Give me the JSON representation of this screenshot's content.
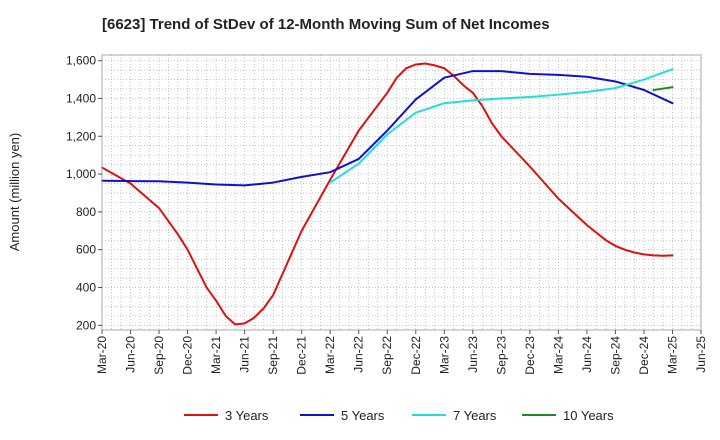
{
  "chart_data": {
    "type": "line",
    "title": "[6623]  Trend of StDev of 12-Month Moving Sum of Net Incomes",
    "xlabel": "",
    "ylabel": "Amount (million yen)",
    "ylim": [
      175,
      1630
    ],
    "y_ticks": [
      200,
      400,
      600,
      800,
      1000,
      1200,
      1400,
      1600
    ],
    "y_tick_labels": [
      "200",
      "400",
      "600",
      "800",
      "1,000",
      "1,200",
      "1,400",
      "1,600"
    ],
    "x_ticks": [
      "Mar-20",
      "Jun-20",
      "Sep-20",
      "Dec-20",
      "Mar-21",
      "Jun-21",
      "Sep-21",
      "Dec-21",
      "Mar-22",
      "Jun-22",
      "Sep-22",
      "Dec-22",
      "Mar-23",
      "Jun-23",
      "Sep-23",
      "Dec-23",
      "Mar-24",
      "Jun-24",
      "Sep-24",
      "Dec-24",
      "Mar-25",
      "Jun-25"
    ],
    "grid": true,
    "legend_position": "bottom",
    "series": [
      {
        "name": "3 Years",
        "color": "#dd1111",
        "x": [
          "2020-03",
          "2020-06",
          "2020-09",
          "2020-11",
          "2020-12",
          "2021-01",
          "2021-02",
          "2021-03",
          "2021-04",
          "2021-05",
          "2021-06",
          "2021-07",
          "2021-08",
          "2021-09",
          "2021-12",
          "2022-03",
          "2022-06",
          "2022-09",
          "2022-10",
          "2022-11",
          "2022-12",
          "2023-01",
          "2023-02",
          "2023-03",
          "2023-04",
          "2023-05",
          "2023-06",
          "2023-07",
          "2023-08",
          "2023-09",
          "2023-12",
          "2024-03",
          "2024-06",
          "2024-07",
          "2024-08",
          "2024-09",
          "2024-10",
          "2024-11",
          "2024-12",
          "2025-01",
          "2025-02",
          "2025-03"
        ],
        "values": [
          1035,
          950,
          820,
          680,
          600,
          500,
          400,
          330,
          250,
          205,
          210,
          240,
          290,
          360,
          700,
          970,
          1230,
          1430,
          1510,
          1560,
          1580,
          1585,
          1575,
          1560,
          1520,
          1470,
          1430,
          1360,
          1270,
          1200,
          1040,
          870,
          730,
          690,
          650,
          620,
          600,
          585,
          575,
          570,
          568,
          570
        ]
      },
      {
        "name": "5 Years",
        "color": "#1111cc",
        "x": [
          "2020-03",
          "2020-06",
          "2020-09",
          "2020-12",
          "2021-03",
          "2021-06",
          "2021-09",
          "2021-12",
          "2022-03",
          "2022-06",
          "2022-09",
          "2022-12",
          "2023-03",
          "2023-06",
          "2023-09",
          "2023-12",
          "2024-03",
          "2024-06",
          "2024-09",
          "2024-12",
          "2025-03"
        ],
        "values": [
          965,
          963,
          962,
          955,
          945,
          940,
          955,
          985,
          1010,
          1080,
          1230,
          1395,
          1510,
          1545,
          1545,
          1530,
          1525,
          1515,
          1490,
          1445,
          1375
        ]
      },
      {
        "name": "7 Years",
        "color": "#22dddd",
        "x": [
          "2022-03",
          "2022-06",
          "2022-09",
          "2022-12",
          "2023-03",
          "2023-06",
          "2023-09",
          "2023-12",
          "2024-03",
          "2024-06",
          "2024-09",
          "2024-12",
          "2025-03"
        ],
        "values": [
          955,
          1055,
          1210,
          1325,
          1375,
          1390,
          1400,
          1408,
          1420,
          1435,
          1455,
          1500,
          1555
        ]
      },
      {
        "name": "10 Years",
        "color": "#228822",
        "x": [
          "2025-01",
          "2025-02",
          "2025-03"
        ],
        "values": [
          1445,
          1452,
          1460
        ]
      }
    ]
  }
}
